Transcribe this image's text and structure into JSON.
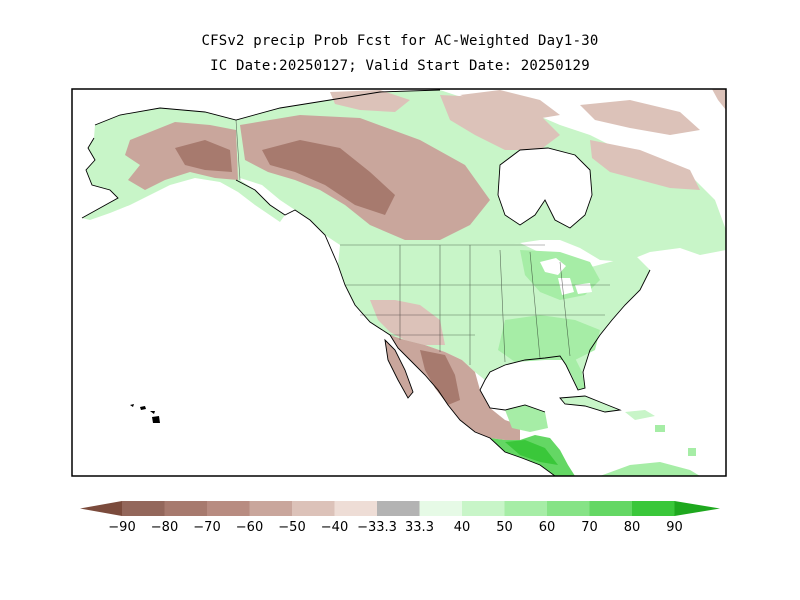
{
  "title_line1": "CFSv2 precip Prob Fcst for AC-Weighted Day1-30",
  "title_line2": "IC Date:20250127; Valid Start Date: 20250129",
  "legend": {
    "labels": [
      "-90",
      "-80",
      "-70",
      "-60",
      "-50",
      "-40",
      "-33.3",
      "33.3",
      "40",
      "50",
      "60",
      "70",
      "80",
      "90"
    ],
    "colors": [
      "#7b4b3c",
      "#93675b",
      "#a77a6e",
      "#b88c81",
      "#c9a69c",
      "#dcc2b9",
      "#eeddd6",
      "#b3b3b3",
      "#e6fae6",
      "#c8f5c8",
      "#a6eda6",
      "#86e386",
      "#64d764",
      "#3ac73a",
      "#1ea81e"
    ]
  },
  "map_colors": {
    "below_strong": "#a77a6e",
    "below_mid": "#c9a69c",
    "below_weak": "#dcc2b9",
    "above_weak": "#c8f5c8",
    "above_mid": "#a6eda6",
    "above_strong": "#64d764",
    "above_very_strong": "#3ac73a",
    "water": "#ffffff",
    "coast": "#000000"
  }
}
